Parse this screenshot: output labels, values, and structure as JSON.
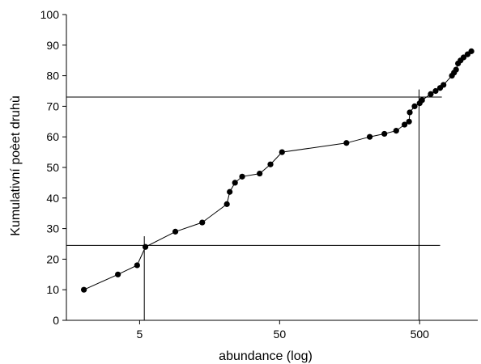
{
  "chart_data": {
    "type": "line",
    "xlabel": "abundance (log)",
    "ylabel": "Kumulativní poèet druhù",
    "x_scale": "log",
    "xlim": [
      1.5,
      1300
    ],
    "ylim": [
      0,
      100
    ],
    "x_ticks": [
      5,
      50,
      500
    ],
    "x_tick_labels": [
      "5",
      "50",
      "500"
    ],
    "y_ticks": [
      0,
      10,
      20,
      30,
      40,
      50,
      60,
      70,
      80,
      90,
      100
    ],
    "y_tick_labels": [
      "0",
      "10",
      "20",
      "30",
      "40",
      "50",
      "60",
      "70",
      "80",
      "90",
      "100"
    ],
    "grid": false,
    "marker_color": "#000000",
    "line_color": "#000000",
    "points": [
      {
        "x": 2,
        "y": 10
      },
      {
        "x": 3.5,
        "y": 15
      },
      {
        "x": 4.8,
        "y": 18
      },
      {
        "x": 5.5,
        "y": 24
      },
      {
        "x": 9,
        "y": 29
      },
      {
        "x": 14,
        "y": 32
      },
      {
        "x": 21,
        "y": 38
      },
      {
        "x": 22,
        "y": 42
      },
      {
        "x": 24,
        "y": 45
      },
      {
        "x": 27,
        "y": 47
      },
      {
        "x": 36,
        "y": 48
      },
      {
        "x": 43,
        "y": 51
      },
      {
        "x": 52,
        "y": 55
      },
      {
        "x": 150,
        "y": 58
      },
      {
        "x": 220,
        "y": 60
      },
      {
        "x": 280,
        "y": 61
      },
      {
        "x": 340,
        "y": 62
      },
      {
        "x": 390,
        "y": 64
      },
      {
        "x": 420,
        "y": 65
      },
      {
        "x": 425,
        "y": 68
      },
      {
        "x": 460,
        "y": 70
      },
      {
        "x": 500,
        "y": 71
      },
      {
        "x": 520,
        "y": 72
      },
      {
        "x": 600,
        "y": 74
      },
      {
        "x": 650,
        "y": 75
      },
      {
        "x": 700,
        "y": 76
      },
      {
        "x": 740,
        "y": 77
      },
      {
        "x": 850,
        "y": 80
      },
      {
        "x": 880,
        "y": 81
      },
      {
        "x": 910,
        "y": 82
      },
      {
        "x": 940,
        "y": 84
      },
      {
        "x": 980,
        "y": 85
      },
      {
        "x": 1030,
        "y": 86
      },
      {
        "x": 1100,
        "y": 87
      },
      {
        "x": 1170,
        "y": 88
      }
    ],
    "reference_lines": [
      {
        "orientation": "horizontal",
        "y": 24.5,
        "x_from": 1.5,
        "x_to": 700
      },
      {
        "orientation": "horizontal",
        "y": 73,
        "x_from": 1.5,
        "x_to": 720
      },
      {
        "orientation": "vertical",
        "x": 5.4,
        "y_from": 0,
        "y_to": 27.5
      },
      {
        "orientation": "vertical",
        "x": 495,
        "y_from": 0,
        "y_to": 75.5
      }
    ]
  }
}
